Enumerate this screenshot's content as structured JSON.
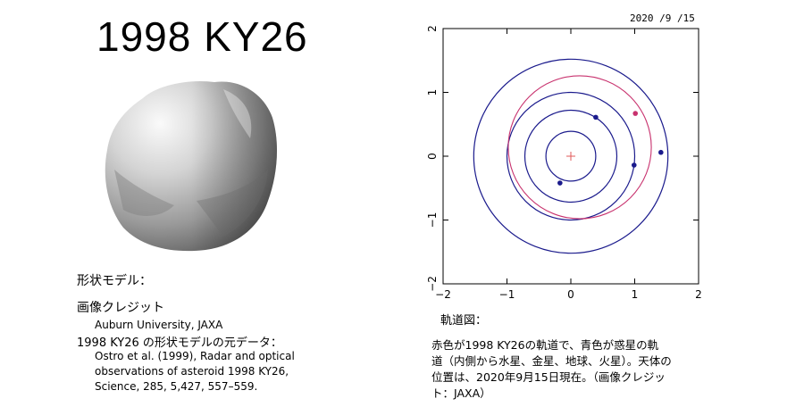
{
  "title": "1998 KY26",
  "shape_label": "形状モデル：",
  "credit": {
    "heading": "画像クレジット",
    "text": "Auburn University, JAXA"
  },
  "source": {
    "heading": "1998 KY26 の形状モデルの元データ：",
    "lines": [
      "Ostro et al. (1999), Radar and optical",
      "observations of asteroid 1998 KY26,",
      "Science, 285, 5,427, 557–559."
    ]
  },
  "orbit": {
    "date": "2020 /9 /15",
    "label": "軌道図：",
    "description_lines": [
      "赤色が1998 KY26の軌道で、青色が惑星の軌",
      "道（内側から水星、金星、地球、火星）。天体の",
      "位置は、2020年9月15日現在。（画像クレジッ",
      "ト：JAXA）"
    ]
  },
  "chart_data": {
    "type": "scatter",
    "xlim": [
      -2,
      2
    ],
    "ylim": [
      -2,
      2
    ],
    "x_ticks": [
      "−2",
      "−1",
      "0",
      "1",
      "2"
    ],
    "y_ticks": [
      "−2",
      "−1",
      "0",
      "1",
      "2"
    ],
    "xlabel": "",
    "ylabel": "",
    "grid": false,
    "sun": {
      "x": 0,
      "y": 0,
      "color": "#e05a5a"
    },
    "planet_orbits": [
      {
        "radius": 0.39,
        "color": "#1a1a8c",
        "position": [
          -0.17,
          -0.42
        ]
      },
      {
        "radius": 0.72,
        "color": "#1a1a8c",
        "position": [
          0.39,
          0.61
        ]
      },
      {
        "radius": 1.0,
        "color": "#1a1a8c",
        "position": [
          0.99,
          -0.14
        ]
      },
      {
        "radius": 1.52,
        "color": "#1a1a8c",
        "position": [
          1.41,
          0.06
        ]
      }
    ],
    "asteroid_orbit": {
      "color": "#c8326e",
      "center": [
        0.14,
        0.14
      ],
      "rx": 1.12,
      "ry": 1.12,
      "position": [
        1.01,
        0.67
      ]
    }
  }
}
